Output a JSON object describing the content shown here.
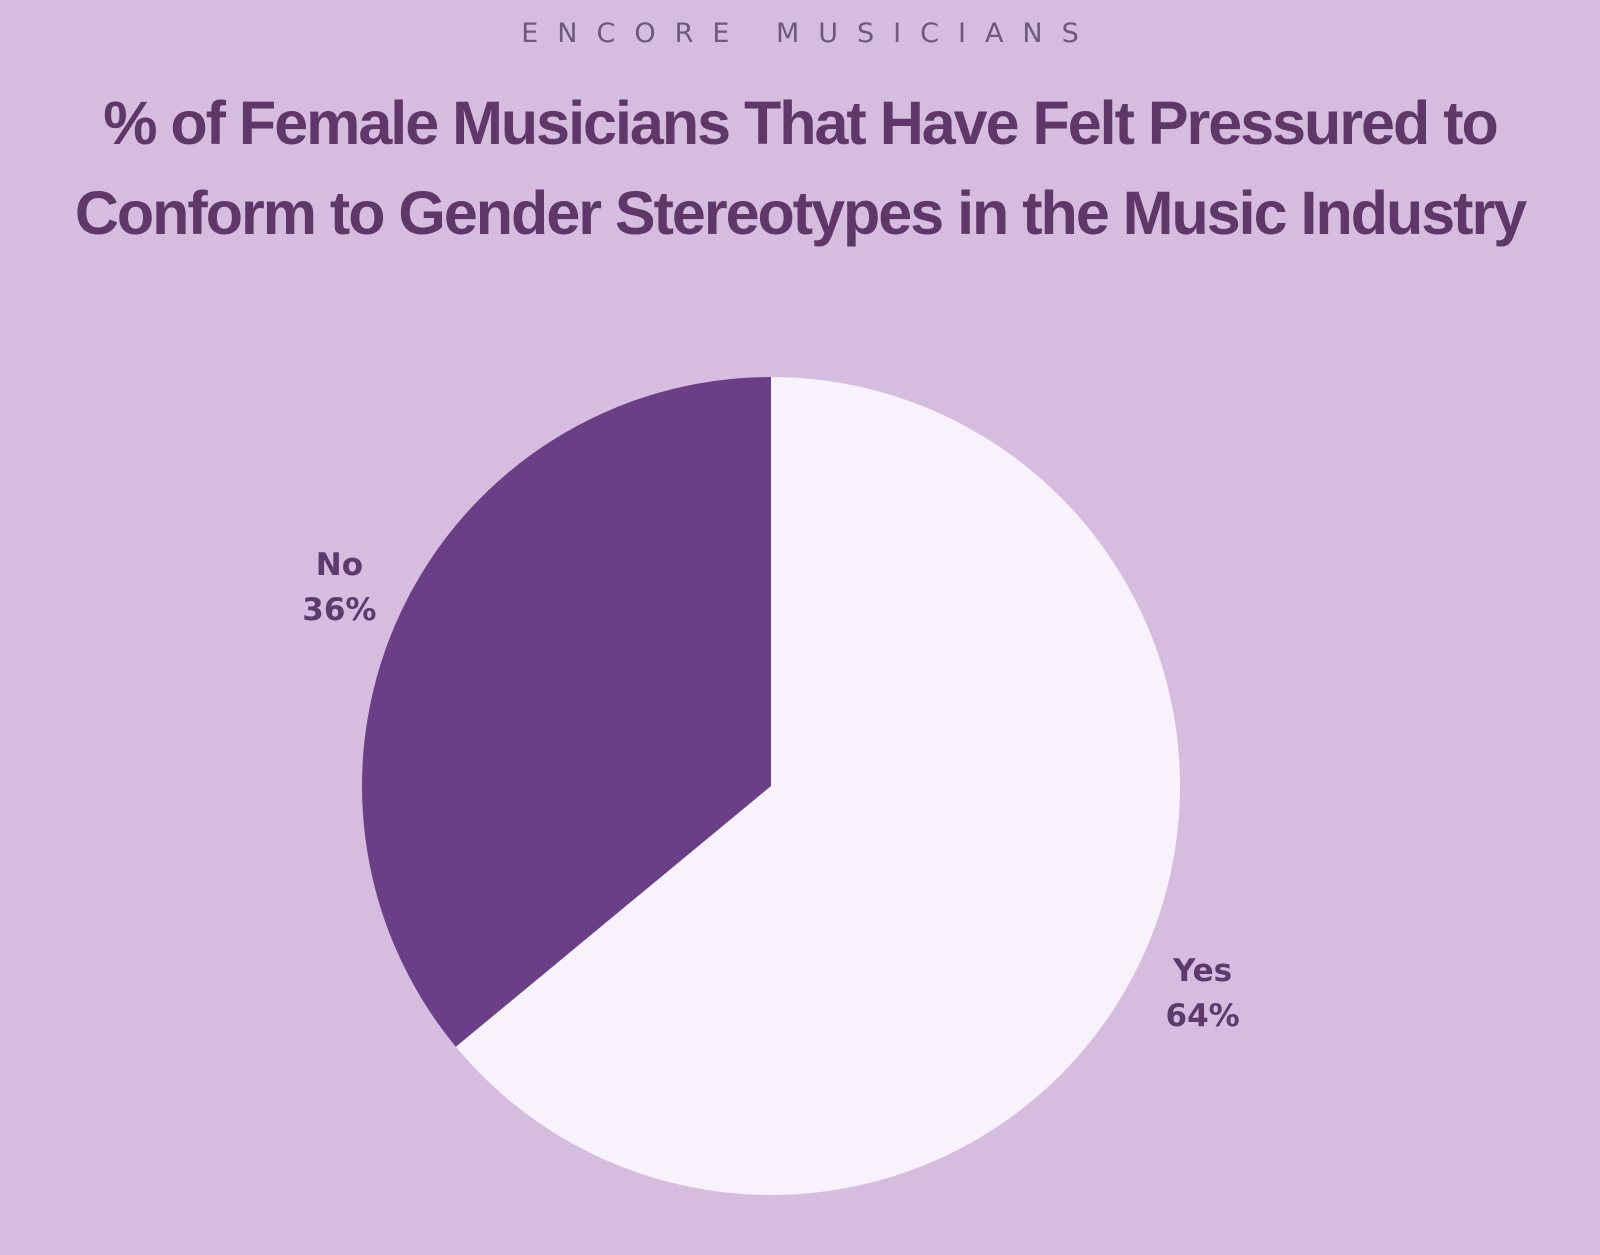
{
  "brand": "ENCORE MUSICIANS",
  "title_lines": [
    "% of Female Musicians That Have Felt Pressured to",
    "Conform to Gender Stereotypes in the Music Industry"
  ],
  "colors": {
    "background": "#d6bcdf",
    "title": "#5f3769",
    "slice_no": "#6a3f88",
    "slice_yes": "#f8f2fd",
    "label": "#5c3a6e"
  },
  "chart_data": {
    "type": "pie",
    "title": "% of Female Musicians That Have Felt Pressured to Conform to Gender Stereotypes in the Music Industry",
    "slices": [
      {
        "label": "Yes",
        "value": 64,
        "value_label": "64%",
        "color": "#f8f2fd"
      },
      {
        "label": "No",
        "value": 36,
        "value_label": "36%",
        "color": "#6a3f88"
      }
    ],
    "legend": "none"
  }
}
